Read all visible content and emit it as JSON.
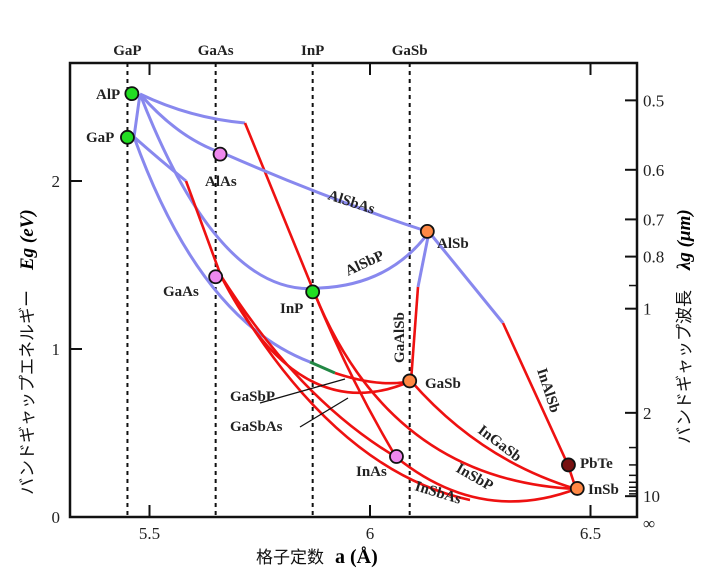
{
  "chart_data": {
    "type": "scatter",
    "title": "",
    "xlabel": "格子定数",
    "xlabel_symbol": "a (Å)",
    "ylabel": "バンドギャップエネルギー",
    "ylabel_symbol": "Eg (eV)",
    "y2label": "バンドギャップ波長",
    "y2label_symbol": "λg (μm)",
    "xlim": [
      5.32,
      6.61
    ],
    "ylim": [
      0,
      2.7
    ],
    "x_ticks": [
      "5.5",
      "6",
      "6.5"
    ],
    "x_tick_values": [
      5.5,
      6.0,
      6.5
    ],
    "y_ticks": [
      "0",
      "1",
      "2"
    ],
    "y_tick_values": [
      0,
      1,
      2
    ],
    "y2_ticks": [
      {
        "label": "0.5",
        "value": 0.5
      },
      {
        "label": "0.6",
        "value": 0.6
      },
      {
        "label": "0.7",
        "value": 0.7
      },
      {
        "label": "0.8",
        "value": 0.8
      },
      {
        "label": "1",
        "value": 1
      },
      {
        "label": "2",
        "value": 2
      },
      {
        "label": "10",
        "value": 10
      },
      {
        "label": "∞",
        "value": null
      }
    ],
    "y2_minor_ticks": [
      0.9,
      3,
      4,
      5,
      6,
      7,
      8,
      9
    ],
    "top_markers": [
      {
        "label": "GaP",
        "a": 5.45
      },
      {
        "label": "GaAs",
        "a": 5.65
      },
      {
        "label": "InP",
        "a": 5.87
      },
      {
        "label": "GaSb",
        "a": 6.09
      }
    ],
    "points": [
      {
        "name": "AlP",
        "a": 5.46,
        "Eg": 2.52,
        "color": "#22dd22"
      },
      {
        "name": "GaP",
        "a": 5.45,
        "Eg": 2.26,
        "color": "#22dd22"
      },
      {
        "name": "AlAs",
        "a": 5.66,
        "Eg": 2.16,
        "color": "#ee88ee"
      },
      {
        "name": "GaAs",
        "a": 5.65,
        "Eg": 1.43,
        "color": "#ee88ee"
      },
      {
        "name": "InP",
        "a": 5.87,
        "Eg": 1.34,
        "color": "#22dd22"
      },
      {
        "name": "AlSb",
        "a": 6.13,
        "Eg": 1.7,
        "color": "#ff8844"
      },
      {
        "name": "GaSb",
        "a": 6.09,
        "Eg": 0.81,
        "color": "#ff8844"
      },
      {
        "name": "InAs",
        "a": 6.06,
        "Eg": 0.36,
        "color": "#ee88ee"
      },
      {
        "name": "PbTe",
        "a": 6.45,
        "Eg": 0.31,
        "color": "#771111"
      },
      {
        "name": "InSb",
        "a": 6.47,
        "Eg": 0.17,
        "color": "#ff8844"
      }
    ],
    "alloy_labels": [
      "AlSbAs",
      "AlSbP",
      "GaAlSb",
      "GaSbP",
      "GaSbAs",
      "InAlSb",
      "InGaSb",
      "InSbP",
      "InSbAs"
    ],
    "legend_colors": {
      "indirect": "#8888ee",
      "direct": "#ee1111",
      "transition": "#228844"
    }
  }
}
